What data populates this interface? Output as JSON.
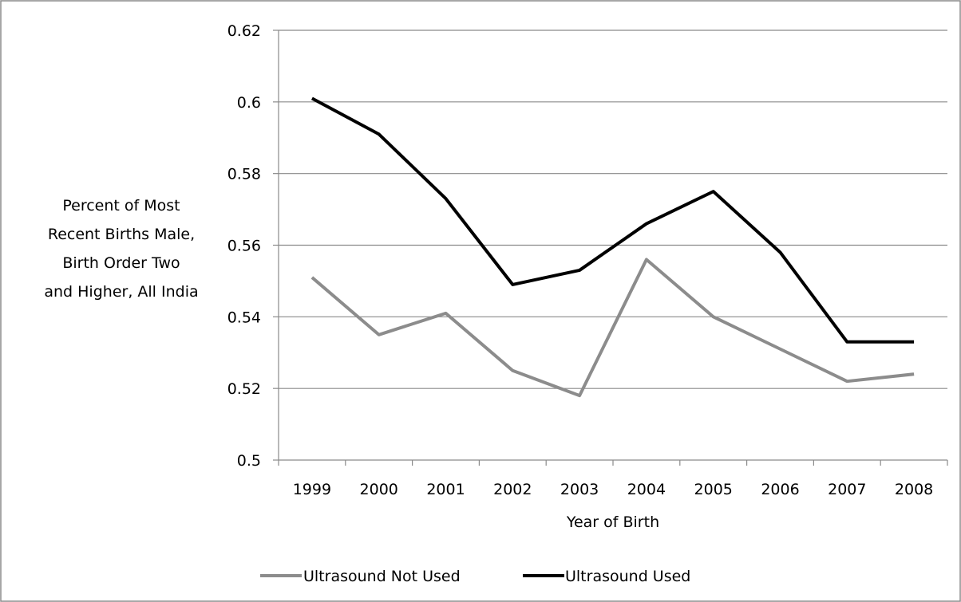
{
  "chart_data": {
    "type": "line",
    "title": "",
    "xlabel": "Year of Birth",
    "ylabel_lines": [
      "Percent of Most",
      "Recent Births Male,",
      "Birth Order Two",
      "and Higher, All India"
    ],
    "categories": [
      "1999",
      "2000",
      "2001",
      "2002",
      "2003",
      "2004",
      "2005",
      "2006",
      "2007",
      "2008"
    ],
    "y_ticks": [
      "0.5",
      "0.52",
      "0.54",
      "0.56",
      "0.58",
      "0.6",
      "0.62"
    ],
    "ylim": [
      0.5,
      0.62
    ],
    "grid": true,
    "legend_position": "bottom",
    "series": [
      {
        "name": "Ultrasound Not Used",
        "color": "#8c8c8c",
        "values": [
          0.551,
          0.535,
          0.541,
          0.525,
          0.518,
          0.556,
          0.54,
          0.531,
          0.522,
          0.524
        ]
      },
      {
        "name": "Ultrasound Used",
        "color": "#000000",
        "values": [
          0.601,
          0.591,
          0.573,
          0.549,
          0.553,
          0.566,
          0.575,
          0.558,
          0.533,
          0.533
        ]
      }
    ]
  }
}
